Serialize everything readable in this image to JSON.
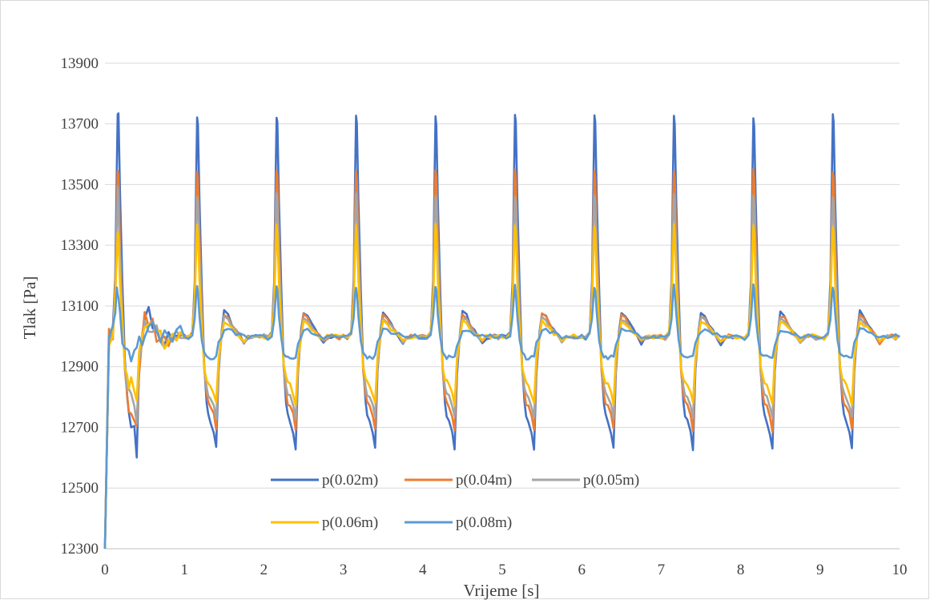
{
  "chart_data": {
    "type": "line",
    "title": "",
    "xlabel": "Vrijeme [s]",
    "ylabel": "Tlak [Pa]",
    "xlim": [
      0,
      10
    ],
    "ylim": [
      12300,
      14000
    ],
    "x_ticks": [
      0,
      1,
      2,
      3,
      4,
      5,
      6,
      7,
      8,
      9,
      10
    ],
    "y_ticks": [
      12300,
      12500,
      12700,
      12900,
      13100,
      13300,
      13500,
      13700,
      13900
    ],
    "grid": "horizontal",
    "legend_position": "bottom-center",
    "period_s": 1.0,
    "start_value": 12300,
    "x": [
      0.0,
      0.05,
      0.1,
      0.13,
      0.15,
      0.16,
      0.17,
      0.19,
      0.22,
      0.25,
      0.28,
      0.3,
      0.33,
      0.37,
      0.4,
      0.43,
      0.47,
      0.5,
      0.55,
      0.6,
      0.65,
      0.7,
      0.75,
      0.8,
      0.85,
      0.9,
      0.95,
      1.0
    ],
    "cycle_phase_s": [
      0.0,
      0.05,
      0.1,
      0.13,
      0.15,
      0.16,
      0.17,
      0.19,
      0.22,
      0.25,
      0.28,
      0.3,
      0.33,
      0.37,
      0.4,
      0.43,
      0.47,
      0.5,
      0.55,
      0.6,
      0.65,
      0.7,
      0.75,
      0.8,
      0.85,
      0.9,
      0.95,
      1.0
    ],
    "series": [
      {
        "name": "p(0.02m)",
        "color": "#4472c4",
        "values": [
          13000,
          12995,
          13010,
          13180,
          13560,
          13725,
          13700,
          13450,
          13150,
          12900,
          12780,
          12740,
          12720,
          12680,
          12630,
          12880,
          13020,
          13080,
          13070,
          13040,
          13020,
          13000,
          12975,
          12995,
          13000,
          13000,
          12995,
          13000
        ]
      },
      {
        "name": "p(0.04m)",
        "color": "#ed7d31",
        "values": [
          13000,
          12995,
          13010,
          13150,
          13440,
          13545,
          13520,
          13320,
          13080,
          12890,
          12810,
          12780,
          12770,
          12740,
          12690,
          12900,
          13010,
          13070,
          13060,
          13035,
          13015,
          13000,
          12980,
          12995,
          13000,
          13000,
          12995,
          13000
        ]
      },
      {
        "name": "p(0.05m)",
        "color": "#a5a5a5",
        "values": [
          13000,
          12995,
          13010,
          13130,
          13380,
          13465,
          13440,
          13260,
          13060,
          12895,
          12830,
          12810,
          12800,
          12770,
          12730,
          12910,
          13005,
          13060,
          13050,
          13030,
          13015,
          13000,
          12985,
          12995,
          13000,
          13000,
          12995,
          13000
        ]
      },
      {
        "name": "p(0.06m)",
        "color": "#ffc000",
        "values": [
          13000,
          12995,
          13010,
          13110,
          13290,
          13365,
          13340,
          13180,
          13030,
          12900,
          12860,
          12850,
          12840,
          12810,
          12780,
          12930,
          13000,
          13050,
          13040,
          13025,
          13010,
          13000,
          12988,
          12998,
          13000,
          13000,
          12998,
          13000
        ]
      },
      {
        "name": "p(0.08m)",
        "color": "#5b9bd5",
        "values": [
          13000,
          12995,
          13005,
          13060,
          13140,
          13165,
          13150,
          13070,
          12990,
          12945,
          12935,
          12930,
          12930,
          12930,
          12935,
          12975,
          13000,
          13020,
          13020,
          13015,
          13010,
          13005,
          12998,
          13000,
          13000,
          13000,
          13000,
          13000
        ]
      }
    ],
    "legend_rows": [
      [
        "p(0.02m)",
        "p(0.04m)",
        "p(0.05m)"
      ],
      [
        "p(0.06m)",
        "p(0.08m)"
      ]
    ]
  }
}
